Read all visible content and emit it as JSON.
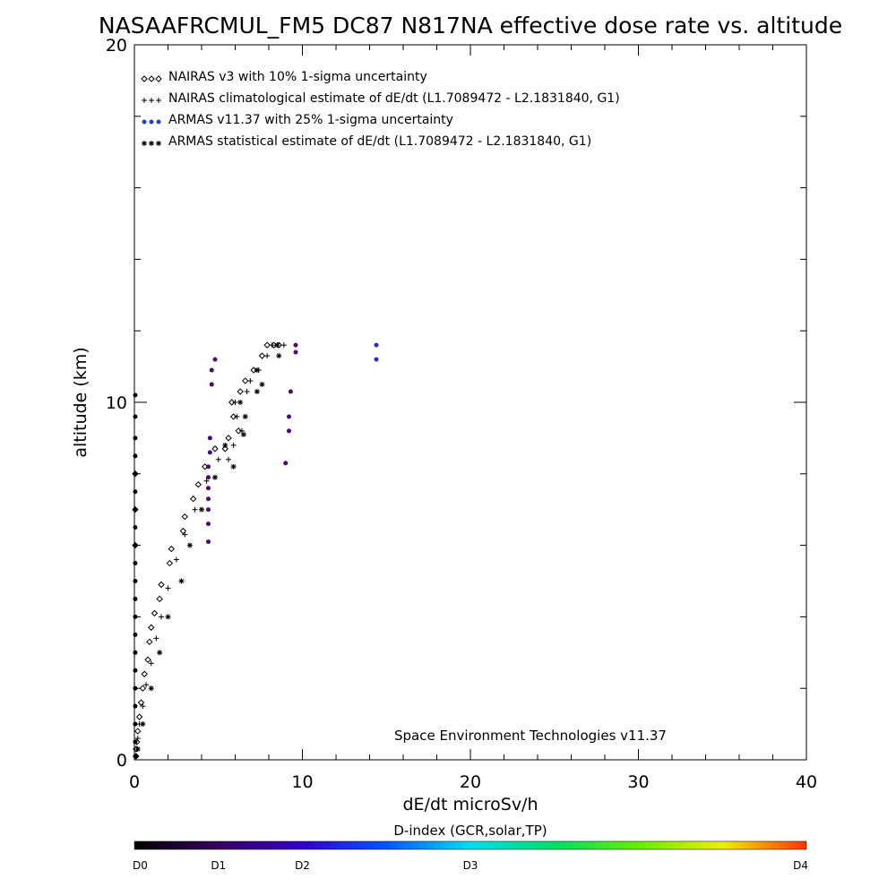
{
  "chart_data": {
    "type": "scatter",
    "title": "NASAAFRCMUL_FM5 DC87 N817NA effective dose rate vs. altitude",
    "xlabel": "dE/dt microSv/h",
    "ylabel": "altitude (km)",
    "xlim": [
      0,
      40
    ],
    "ylim": [
      0,
      20
    ],
    "x_ticks": [
      "0",
      "10",
      "20",
      "30",
      "40"
    ],
    "y_ticks": [
      "0",
      "10",
      "20"
    ],
    "grid": false,
    "legend_placement": "top-left",
    "credit": "Space Environment Technologies v11.37",
    "legend": [
      {
        "label": "NAIRAS v3 with 10% 1-sigma uncertainty",
        "marker": "diamond",
        "color": "#000000"
      },
      {
        "label": "NAIRAS climatological estimate of dE/dt (L1.7089472 - L2.1831840, G1)",
        "marker": "plus",
        "color": "#000000"
      },
      {
        "label": "ARMAS v11.37 with 25% 1-sigma uncertainty",
        "marker": "dot",
        "color": "#2244cc"
      },
      {
        "label": "ARMAS statistical estimate of dE/dt (L1.7089472 - L2.1831840, G1)",
        "marker": "asterisk",
        "color": "#000000"
      }
    ],
    "colorbar": {
      "title": "D-index (GCR,solar,TP)",
      "labels": [
        {
          "text": "D0",
          "pos": 0
        },
        {
          "text": "D1",
          "pos": 0.125
        },
        {
          "text": "D2",
          "pos": 0.25
        },
        {
          "text": "D3",
          "pos": 0.5
        },
        {
          "text": "D4",
          "pos": 1
        }
      ],
      "colors": [
        "#000000",
        "#3a0060",
        "#3300cc",
        "#0055ff",
        "#00ddee",
        "#00dd66",
        "#66ee00",
        "#eeee00",
        "#ff3300"
      ]
    },
    "series": [
      {
        "name": "NAIRAS v3 with 10% 1-sigma uncertainty",
        "marker": "diamond",
        "color": "#000000",
        "points": [
          [
            0.1,
            0.1
          ],
          [
            0.1,
            0.3
          ],
          [
            0.15,
            0.5
          ],
          [
            0.2,
            0.8
          ],
          [
            0.3,
            1.2
          ],
          [
            0.4,
            1.6
          ],
          [
            0.5,
            2.0
          ],
          [
            0.6,
            2.4
          ],
          [
            0.8,
            2.8
          ],
          [
            0.9,
            3.3
          ],
          [
            1.0,
            3.7
          ],
          [
            1.2,
            4.1
          ],
          [
            1.5,
            4.5
          ],
          [
            1.6,
            4.9
          ],
          [
            2.1,
            5.5
          ],
          [
            2.2,
            5.9
          ],
          [
            2.9,
            6.4
          ],
          [
            3.0,
            6.8
          ],
          [
            3.5,
            7.3
          ],
          [
            3.8,
            7.7
          ],
          [
            4.2,
            8.2
          ],
          [
            4.8,
            8.7
          ],
          [
            5.4,
            8.7
          ],
          [
            5.6,
            9.0
          ],
          [
            6.2,
            9.2
          ],
          [
            5.9,
            9.6
          ],
          [
            5.8,
            10.0
          ],
          [
            6.3,
            10.3
          ],
          [
            6.6,
            10.6
          ],
          [
            7.1,
            10.9
          ],
          [
            7.6,
            11.3
          ],
          [
            7.9,
            11.6
          ],
          [
            8.3,
            11.6
          ],
          [
            8.6,
            11.6
          ],
          [
            0.05,
            6.0
          ],
          [
            0.05,
            7.0
          ],
          [
            0.05,
            8.0
          ]
        ]
      },
      {
        "name": "NAIRAS climatological estimate of dE/dt (L1.7089472 - L2.1831840, G1)",
        "marker": "plus",
        "color": "#000000",
        "points": [
          [
            0.1,
            0.1
          ],
          [
            0.15,
            0.3
          ],
          [
            0.2,
            0.6
          ],
          [
            0.3,
            1.0
          ],
          [
            0.5,
            1.5
          ],
          [
            0.7,
            2.1
          ],
          [
            1.0,
            2.7
          ],
          [
            1.3,
            3.4
          ],
          [
            1.6,
            4.0
          ],
          [
            2.0,
            4.8
          ],
          [
            2.5,
            5.6
          ],
          [
            3.0,
            6.3
          ],
          [
            3.6,
            7.0
          ],
          [
            4.3,
            7.8
          ],
          [
            5.0,
            8.4
          ],
          [
            5.6,
            8.4
          ],
          [
            5.9,
            8.8
          ],
          [
            6.4,
            9.2
          ],
          [
            6.1,
            9.6
          ],
          [
            6.0,
            10.0
          ],
          [
            6.7,
            10.3
          ],
          [
            6.9,
            10.6
          ],
          [
            7.4,
            10.9
          ],
          [
            7.9,
            11.3
          ],
          [
            8.2,
            11.6
          ],
          [
            8.9,
            11.6
          ]
        ]
      },
      {
        "name": "ARMAS v11.37 with 25% 1-sigma uncertainty",
        "marker": "dot",
        "color": "#2244cc",
        "points": [
          [
            14.4,
            11.6
          ],
          [
            14.4,
            11.2
          ],
          [
            9.6,
            11.6
          ],
          [
            9.6,
            11.4
          ],
          [
            9.3,
            10.3
          ],
          [
            9.2,
            9.6
          ],
          [
            9.2,
            9.2
          ],
          [
            9.0,
            8.3
          ],
          [
            4.8,
            11.2
          ],
          [
            4.6,
            10.9
          ],
          [
            4.6,
            10.5
          ],
          [
            4.5,
            9.0
          ],
          [
            4.5,
            8.6
          ],
          [
            4.4,
            8.2
          ],
          [
            4.4,
            7.9
          ],
          [
            4.4,
            7.6
          ],
          [
            4.4,
            7.3
          ],
          [
            4.4,
            7.0
          ],
          [
            4.4,
            6.6
          ],
          [
            4.4,
            6.1
          ]
        ]
      },
      {
        "name": "ARMAS statistical estimate of dE/dt (L1.7089472 - L2.1831840, G1)",
        "marker": "asterisk",
        "color": "#000000",
        "points": [
          [
            0.2,
            0.3
          ],
          [
            0.5,
            1.0
          ],
          [
            1.0,
            2.0
          ],
          [
            1.5,
            3.0
          ],
          [
            2.0,
            4.0
          ],
          [
            2.8,
            5.0
          ],
          [
            3.3,
            6.0
          ],
          [
            4.0,
            7.0
          ],
          [
            4.8,
            7.9
          ],
          [
            5.9,
            8.2
          ],
          [
            5.4,
            8.8
          ],
          [
            6.5,
            9.1
          ],
          [
            6.6,
            9.6
          ],
          [
            6.3,
            10.0
          ],
          [
            7.3,
            10.3
          ],
          [
            7.6,
            10.5
          ],
          [
            7.3,
            10.9
          ],
          [
            8.6,
            11.3
          ],
          [
            8.5,
            11.6
          ]
        ]
      },
      {
        "name": "",
        "marker": "dot",
        "color": "#000000",
        "points": [
          [
            0.05,
            10.2
          ],
          [
            0.05,
            9.6
          ],
          [
            0.05,
            9.0
          ],
          [
            0.05,
            8.5
          ],
          [
            0.05,
            8.0
          ],
          [
            0.05,
            7.5
          ],
          [
            0.05,
            7.0
          ],
          [
            0.05,
            6.5
          ],
          [
            0.05,
            6.0
          ],
          [
            0.05,
            5.5
          ],
          [
            0.05,
            5.0
          ],
          [
            0.05,
            4.5
          ],
          [
            0.05,
            4.0
          ],
          [
            0.05,
            3.5
          ],
          [
            0.05,
            3.0
          ],
          [
            0.05,
            2.5
          ],
          [
            0.05,
            2.0
          ],
          [
            0.05,
            1.5
          ],
          [
            0.05,
            1.0
          ],
          [
            0.05,
            0.5
          ],
          [
            0.05,
            0.1
          ]
        ]
      }
    ]
  }
}
